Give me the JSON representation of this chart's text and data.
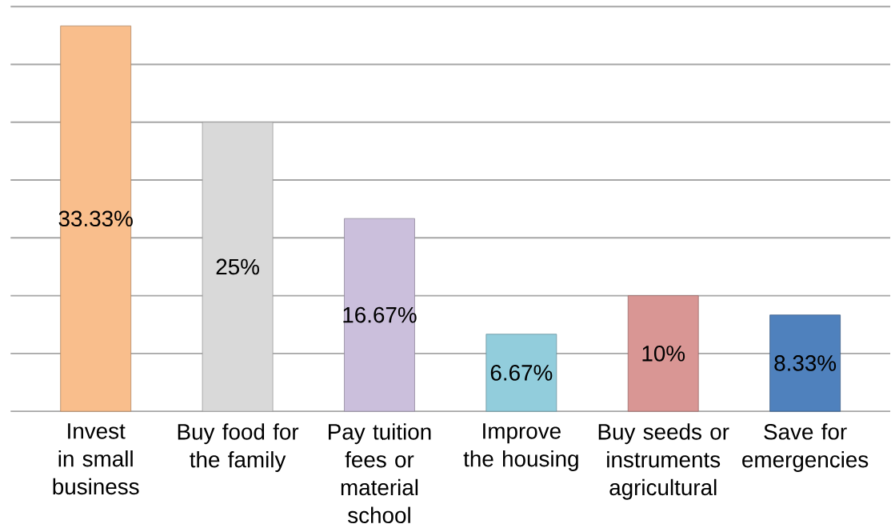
{
  "chart_data": {
    "type": "bar",
    "categories": [
      "Invest in small business",
      "Buy food for the family",
      "Pay tuition fees or material school",
      "Improve the housing",
      "Buy seeds or instruments agricultural",
      "Save for emergencies"
    ],
    "values": [
      33.33,
      25,
      16.67,
      6.67,
      10,
      8.33
    ],
    "value_labels": [
      "33.33%",
      "25%",
      "16.67%",
      "6.67%",
      "10%",
      "8.33%"
    ],
    "colors": [
      "#f9be8c",
      "#d9d9d9",
      "#cbbfdc",
      "#92cddc",
      "#d99694",
      "#4f81bd"
    ],
    "ylim": [
      0,
      35
    ],
    "yticks": [
      {
        "value": 0,
        "label": null
      },
      {
        "value": 5,
        "label": null
      },
      {
        "value": 10,
        "label": null
      },
      {
        "value": 15,
        "label": null
      },
      {
        "value": 20,
        "label": null
      },
      {
        "value": 25,
        "label": null
      },
      {
        "value": 30,
        "label": null
      },
      {
        "value": 35,
        "label": null
      }
    ],
    "tick_labels": "x",
    "grid": "y"
  }
}
